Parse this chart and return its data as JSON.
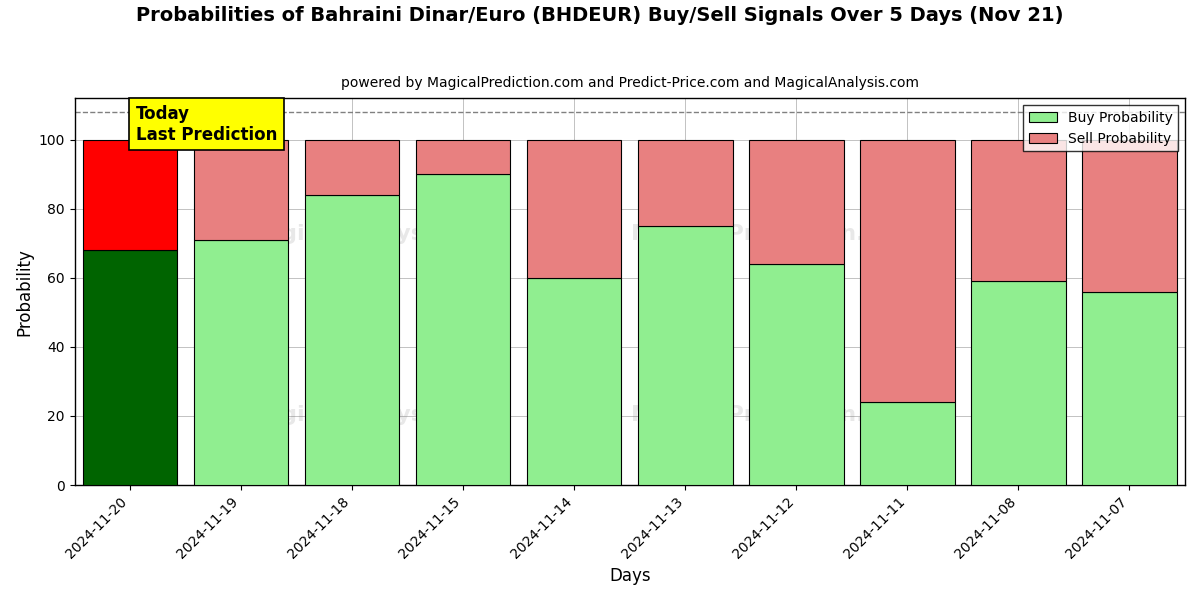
{
  "title": "Probabilities of Bahraini Dinar/Euro (BHDEUR) Buy/Sell Signals Over 5 Days (Nov 21)",
  "subtitle": "powered by MagicalPrediction.com and Predict-Price.com and MagicalAnalysis.com",
  "xlabel": "Days",
  "ylabel": "Probability",
  "categories": [
    "2024-11-20",
    "2024-11-19",
    "2024-11-18",
    "2024-11-15",
    "2024-11-14",
    "2024-11-13",
    "2024-11-12",
    "2024-11-11",
    "2024-11-08",
    "2024-11-07"
  ],
  "buy_values": [
    68,
    71,
    84,
    90,
    60,
    75,
    64,
    24,
    59,
    56
  ],
  "sell_values": [
    32,
    29,
    16,
    10,
    40,
    25,
    36,
    76,
    41,
    44
  ],
  "buy_colors": [
    "#006400",
    "#90EE90",
    "#90EE90",
    "#90EE90",
    "#90EE90",
    "#90EE90",
    "#90EE90",
    "#90EE90",
    "#90EE90",
    "#90EE90"
  ],
  "sell_colors": [
    "#FF0000",
    "#E88080",
    "#E88080",
    "#E88080",
    "#E88080",
    "#E88080",
    "#E88080",
    "#E88080",
    "#E88080",
    "#E88080"
  ],
  "buy_legend_color": "#90EE90",
  "sell_legend_color": "#E88080",
  "today_label": "Today\nLast Prediction",
  "today_label_bg": "#FFFF00",
  "ylim": [
    0,
    112
  ],
  "yticks": [
    0,
    20,
    40,
    60,
    80,
    100
  ],
  "dashed_line_y": 108,
  "background_color": "#ffffff",
  "grid_color": "#aaaaaa",
  "bar_width": 0.85
}
